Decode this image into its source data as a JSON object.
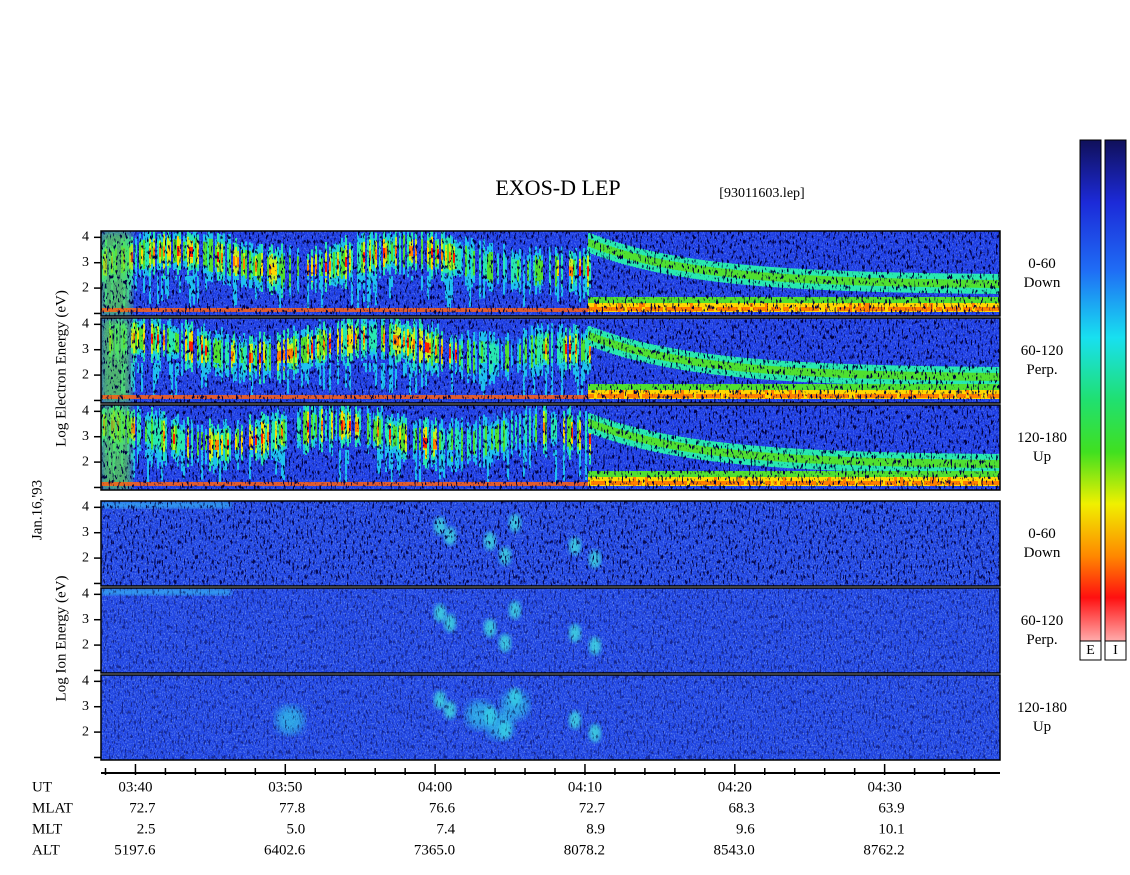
{
  "chart_data": {
    "type": "spectrogram",
    "title": "EXOS-D LEP",
    "file_label": "[93011603.lep]",
    "date_label": "Jan.16,'93",
    "xlim": [
      217.7,
      277.7
    ],
    "xticks": [
      {
        "value": 220,
        "label": "03:40"
      },
      {
        "value": 230,
        "label": "03:50"
      },
      {
        "value": 240,
        "label": "04:00"
      },
      {
        "value": 250,
        "label": "04:10"
      },
      {
        "value": 260,
        "label": "04:20"
      },
      {
        "value": 270,
        "label": "04:30"
      }
    ],
    "xminor": [
      218,
      222,
      224,
      226,
      228,
      232,
      234,
      236,
      238,
      242,
      244,
      246,
      248,
      252,
      254,
      256,
      258,
      262,
      264,
      266,
      268,
      272,
      274,
      276
    ],
    "ylim": [
      0.9,
      4.25
    ],
    "yticks": [
      2,
      3,
      4
    ],
    "yminor": [
      1
    ],
    "groups": [
      {
        "ylabel": "Log Electron Energy (eV)",
        "species": "electron",
        "panels": [
          {
            "label": [
              "0-60",
              "Down"
            ]
          },
          {
            "label": [
              "60-120",
              "Perp."
            ]
          },
          {
            "label": [
              "120-180",
              "Up"
            ]
          }
        ]
      },
      {
        "ylabel": "Log Ion Energy (eV)",
        "species": "ion",
        "panels": [
          {
            "label": [
              "0-60",
              "Down"
            ]
          },
          {
            "label": [
              "60-120",
              "Perp."
            ]
          },
          {
            "label": [
              "120-180",
              "Up"
            ]
          }
        ]
      }
    ],
    "time_label": "UT",
    "ephemeris": [
      {
        "name": "MLAT",
        "values": [
          "72.7",
          "77.8",
          "76.6",
          "72.7",
          "68.3",
          "63.9"
        ]
      },
      {
        "name": "MLT",
        "values": [
          "2.5",
          "5.0",
          "7.4",
          "8.9",
          "9.6",
          "10.1"
        ]
      },
      {
        "name": "ALT",
        "values": [
          "5197.6",
          "6402.6",
          "7365.0",
          "8078.2",
          "8543.0",
          "8762.2"
        ]
      }
    ],
    "colorbars": [
      "E",
      "I"
    ]
  }
}
